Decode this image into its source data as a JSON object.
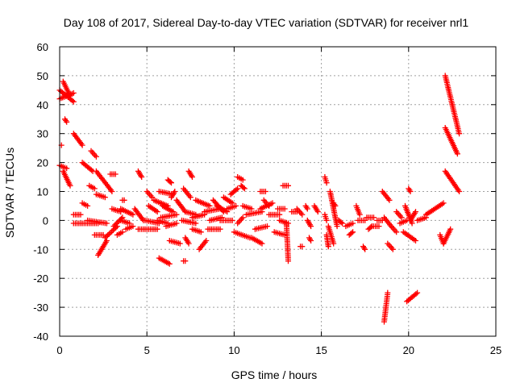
{
  "chart_data": {
    "type": "scatter",
    "title": "Day 108 of 2017, Sidereal Day-to-day VTEC variation (SDTVAR) for receiver nrl1",
    "xlabel": "GPS time / hours",
    "ylabel": "SDTVAR / TECUs",
    "xlim": [
      0,
      25
    ],
    "ylim": [
      -40,
      60
    ],
    "xticks": [
      0,
      5,
      10,
      15,
      20,
      25
    ],
    "yticks": [
      -40,
      -30,
      -20,
      -10,
      0,
      10,
      20,
      30,
      40,
      50,
      60
    ],
    "grid": true,
    "marker": "+",
    "color": "#ff0000",
    "series": [
      {
        "name": "SDTVAR",
        "segments": [
          [
            0.0,
            45,
            0.8,
            41
          ],
          [
            0.0,
            42,
            0.8,
            44
          ],
          [
            0.2,
            48,
            0.6,
            43
          ],
          [
            0.3,
            35,
            0.4,
            34
          ],
          [
            0.1,
            26,
            0.1,
            26
          ],
          [
            0.0,
            19,
            0.4,
            18
          ],
          [
            0.2,
            17,
            0.6,
            12
          ],
          [
            0.8,
            30,
            1.3,
            26
          ],
          [
            1.3,
            20,
            1.9,
            17
          ],
          [
            1.8,
            24,
            2.1,
            22
          ],
          [
            2.1,
            17,
            3.0,
            10
          ],
          [
            2.9,
            16,
            3.2,
            16
          ],
          [
            4.5,
            17,
            4.7,
            15
          ],
          [
            1.7,
            12,
            2.0,
            11
          ],
          [
            2.1,
            9,
            2.6,
            8
          ],
          [
            1.3,
            6,
            1.6,
            5
          ],
          [
            0.8,
            2,
            1.2,
            2
          ],
          [
            0.8,
            -1,
            2.2,
            -1
          ],
          [
            1.6,
            0,
            2.7,
            -1
          ],
          [
            2.0,
            -5,
            2.5,
            -5
          ],
          [
            2.2,
            -12,
            2.7,
            -7
          ],
          [
            2.6,
            -6,
            3.3,
            -2
          ],
          [
            3.1,
            -2,
            3.6,
            1
          ],
          [
            3.0,
            4,
            3.5,
            3
          ],
          [
            3.3,
            -5,
            3.6,
            -4
          ],
          [
            3.5,
            4,
            4.2,
            2
          ],
          [
            3.6,
            7,
            3.7,
            7
          ],
          [
            3.5,
            0,
            4.0,
            -1
          ],
          [
            3.8,
            -3,
            4.2,
            -2
          ],
          [
            4.3,
            4,
            4.8,
            0
          ],
          [
            4.5,
            -3,
            5.6,
            -3
          ],
          [
            5.1,
            5,
            5.6,
            3
          ],
          [
            4.9,
            0,
            5.7,
            -1
          ],
          [
            5.6,
            0,
            6.2,
            -1
          ],
          [
            5.0,
            10,
            5.3,
            8
          ],
          [
            5.4,
            7,
            6.2,
            5
          ],
          [
            5.7,
            10,
            6.5,
            9
          ],
          [
            5.9,
            5,
            6.5,
            3
          ],
          [
            5.8,
            1,
            6.7,
            2
          ],
          [
            6.1,
            -2,
            6.7,
            -1
          ],
          [
            6.4,
            8,
            6.6,
            10
          ],
          [
            6.2,
            14,
            6.4,
            13
          ],
          [
            6.3,
            -7,
            6.9,
            -8
          ],
          [
            5.7,
            -13,
            6.3,
            -15
          ],
          [
            7.1,
            -14,
            7.2,
            -14
          ],
          [
            6.7,
            7,
            7.2,
            3
          ],
          [
            7.1,
            11,
            7.5,
            8
          ],
          [
            7.2,
            3,
            7.8,
            2
          ],
          [
            7.0,
            0,
            7.8,
            -1
          ],
          [
            7.2,
            -6,
            7.4,
            -8
          ],
          [
            7.4,
            17,
            7.6,
            15
          ],
          [
            7.6,
            1,
            8.3,
            2
          ],
          [
            7.6,
            -3,
            8.1,
            -4
          ],
          [
            7.8,
            7,
            8.6,
            5
          ],
          [
            8.0,
            -10,
            8.4,
            -7
          ],
          [
            8.3,
            3,
            9.2,
            4
          ],
          [
            8.6,
            0,
            9.3,
            1
          ],
          [
            8.5,
            -3,
            9.2,
            -3
          ],
          [
            8.8,
            7,
            9.4,
            3
          ],
          [
            9.0,
            5,
            9.6,
            3
          ],
          [
            9.2,
            0,
            9.9,
            0
          ],
          [
            9.4,
            8,
            9.9,
            6
          ],
          [
            9.6,
            4,
            10.1,
            5
          ],
          [
            9.8,
            9,
            10.2,
            11
          ],
          [
            10.0,
            -4,
            10.9,
            -6
          ],
          [
            10.2,
            -1,
            10.5,
            1
          ],
          [
            10.4,
            12,
            10.6,
            11
          ],
          [
            10.5,
            5,
            11.0,
            4
          ],
          [
            10.2,
            15,
            10.5,
            14
          ],
          [
            10.7,
            2,
            11.6,
            3
          ],
          [
            11.0,
            -6,
            11.6,
            -8
          ],
          [
            11.2,
            -3,
            11.9,
            -2
          ],
          [
            11.5,
            4,
            12.2,
            6
          ],
          [
            11.7,
            7,
            12.0,
            5
          ],
          [
            11.5,
            10,
            11.8,
            10
          ],
          [
            12.0,
            2,
            12.6,
            2
          ],
          [
            12.3,
            -4,
            12.9,
            -5
          ],
          [
            12.5,
            4,
            12.9,
            4
          ],
          [
            12.6,
            0,
            13.1,
            -1
          ],
          [
            12.8,
            12,
            13.1,
            12
          ],
          [
            13.0,
            -1,
            13.1,
            -14
          ],
          [
            13.3,
            3,
            13.6,
            3
          ],
          [
            13.6,
            4,
            13.9,
            2
          ],
          [
            13.8,
            -9,
            13.9,
            -9
          ],
          [
            14.1,
            5,
            14.2,
            4
          ],
          [
            14.2,
            0,
            14.4,
            -2
          ],
          [
            14.3,
            -6,
            14.4,
            -7
          ],
          [
            14.6,
            5,
            14.8,
            3
          ],
          [
            15.2,
            15,
            15.3,
            13
          ],
          [
            15.2,
            2,
            15.3,
            0
          ],
          [
            15.3,
            -5,
            15.4,
            -9
          ],
          [
            15.5,
            10,
            15.9,
            -2
          ],
          [
            15.7,
            6,
            15.8,
            5
          ],
          [
            15.4,
            -2,
            15.7,
            -8
          ],
          [
            16.0,
            0,
            16.2,
            -1
          ],
          [
            16.4,
            -2,
            16.8,
            -1
          ],
          [
            16.6,
            -5,
            16.8,
            -4
          ],
          [
            17.0,
            5,
            17.2,
            2
          ],
          [
            17.1,
            0,
            17.5,
            0
          ],
          [
            17.4,
            -9,
            17.5,
            -10
          ],
          [
            17.6,
            1,
            18.0,
            1
          ],
          [
            17.7,
            -3,
            17.9,
            -2
          ],
          [
            17.9,
            -2,
            18.3,
            -2
          ],
          [
            18.2,
            0,
            18.5,
            0
          ],
          [
            18.6,
            -35,
            18.8,
            -25
          ],
          [
            18.5,
            10,
            18.9,
            7
          ],
          [
            18.6,
            1,
            19.0,
            -2
          ],
          [
            18.8,
            -8,
            19.1,
            -10
          ],
          [
            19.0,
            -2,
            19.3,
            -4
          ],
          [
            19.3,
            3,
            19.6,
            1
          ],
          [
            19.5,
            -1,
            19.9,
            0
          ],
          [
            19.8,
            5,
            20.2,
            -1
          ],
          [
            19.7,
            -4,
            20.4,
            -7
          ],
          [
            19.9,
            -28,
            20.5,
            -25
          ],
          [
            20.0,
            11,
            20.1,
            10
          ],
          [
            20.1,
            0,
            20.4,
            3
          ],
          [
            20.5,
            0,
            21.0,
            1
          ],
          [
            21.0,
            2,
            22.0,
            6
          ],
          [
            21.8,
            -5,
            22.0,
            -8
          ],
          [
            22.1,
            50,
            22.9,
            30
          ],
          [
            22.1,
            32,
            22.8,
            23
          ],
          [
            22.1,
            17,
            22.9,
            10
          ],
          [
            22.0,
            -8,
            22.4,
            -3
          ]
        ]
      }
    ]
  }
}
